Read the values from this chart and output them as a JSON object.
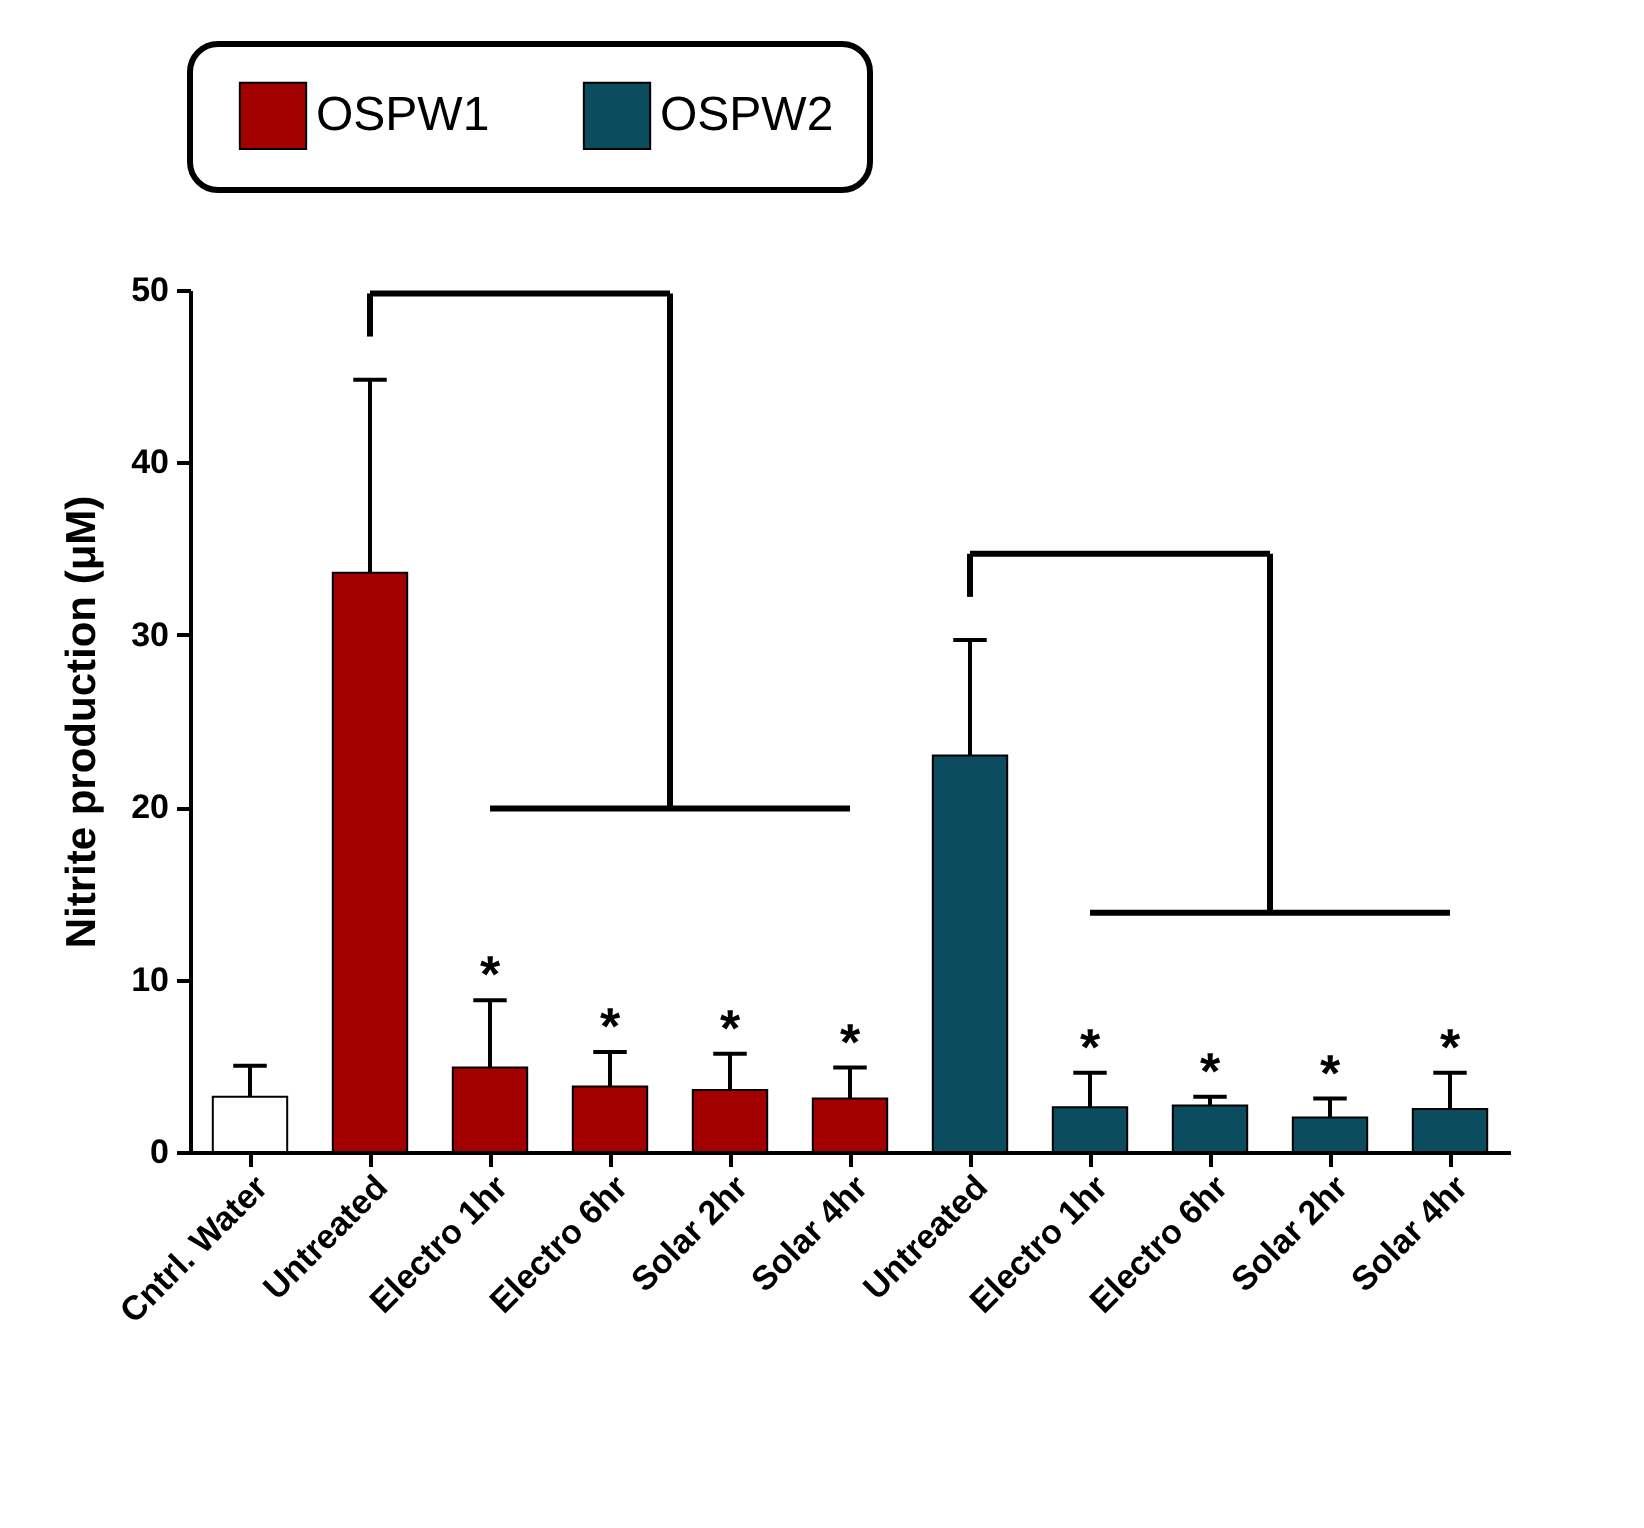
{
  "chart_data": {
    "type": "bar",
    "ylabel": "Nitrite production (μM)",
    "categories": [
      "Cntrl. Water",
      "Untreated",
      "Electro 1hr",
      "Electro 6hr",
      "Solar 2hr",
      "Solar 4hr",
      "Untreated",
      "Electro 1hr",
      "Electro 6hr",
      "Solar 2hr",
      "Solar 4hr"
    ],
    "series": [
      {
        "color": "#ffffff",
        "values": [
          3.2,
          null,
          null,
          null,
          null,
          null,
          null,
          null,
          null,
          null,
          null
        ],
        "errors": [
          [
            3.2,
            5.0
          ],
          null,
          null,
          null,
          null,
          null,
          null,
          null,
          null,
          null,
          null
        ]
      },
      {
        "name": "OSPW1",
        "color": "#a30000",
        "values": [
          null,
          33.6,
          4.9,
          3.8,
          3.6,
          3.1,
          null,
          null,
          null,
          null,
          null
        ],
        "errors": [
          null,
          [
            33.6,
            44.8
          ],
          [
            4.9,
            8.8
          ],
          [
            3.8,
            5.8
          ],
          [
            3.6,
            5.7
          ],
          [
            3.1,
            4.9
          ],
          null,
          null,
          null,
          null,
          null
        ]
      },
      {
        "name": "OSPW2",
        "color": "#0b4d5e",
        "values": [
          null,
          null,
          null,
          null,
          null,
          null,
          23.0,
          2.6,
          2.7,
          2.0,
          2.5
        ],
        "errors": [
          null,
          null,
          null,
          null,
          null,
          null,
          [
            23.0,
            29.7
          ],
          [
            2.6,
            4.6
          ],
          [
            2.7,
            3.2
          ],
          [
            2.0,
            3.1
          ],
          [
            2.5,
            4.6
          ]
        ]
      }
    ],
    "annotations": [
      {
        "text": "*",
        "x": "Electro 1hr",
        "y": 8.8
      },
      {
        "text": "*",
        "x": "Electro 6hr",
        "y": 5.8
      },
      {
        "text": "*",
        "x": "Solar 2hr",
        "y": 5.7
      },
      {
        "text": "*",
        "x": "Solar 4hr",
        "y": 4.9
      },
      "*",
      "*",
      "*",
      "*"
    ],
    "ylim": [
      0,
      50
    ],
    "yticks": [
      0,
      10,
      20,
      30,
      40,
      50
    ],
    "grid": false,
    "legend": "top"
  }
}
